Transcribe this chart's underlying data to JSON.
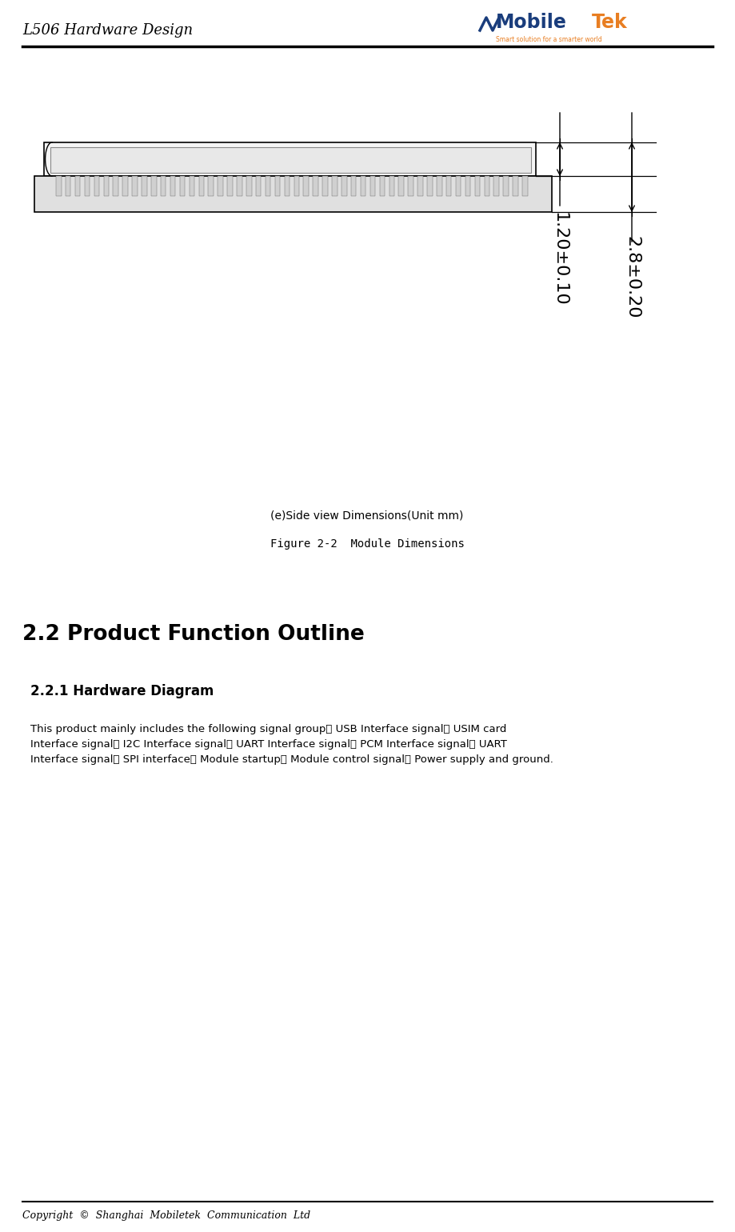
{
  "page_width": 9.19,
  "page_height": 15.4,
  "bg_color": "#ffffff",
  "header_title": "L506 Hardware Design",
  "footer_text": "Copyright  ©  Shanghai  Mobiletek  Communication  Ltd",
  "caption_line1": "(e)Side view Dimensions(Unit mm)",
  "caption_line2": "Figure 2-2  Module Dimensions",
  "section_title": "2.2 Product Function Outline",
  "subsection_title": "2.2.1 Hardware Diagram",
  "body_text": "This product mainly includes the following signal group： USB Interface signal、 USIM card\nInterface signal、 I2C Interface signal、 UART Interface signal、 PCM Interface signal、 UART\nInterface signal、 SPI interface、 Module startup、 Module control signal、 Power supply and ground.",
  "dim_label1": "1.20±0.10",
  "dim_label2": "2.8±0.20",
  "header_line_color": "#000000",
  "footer_line_color": "#000000"
}
